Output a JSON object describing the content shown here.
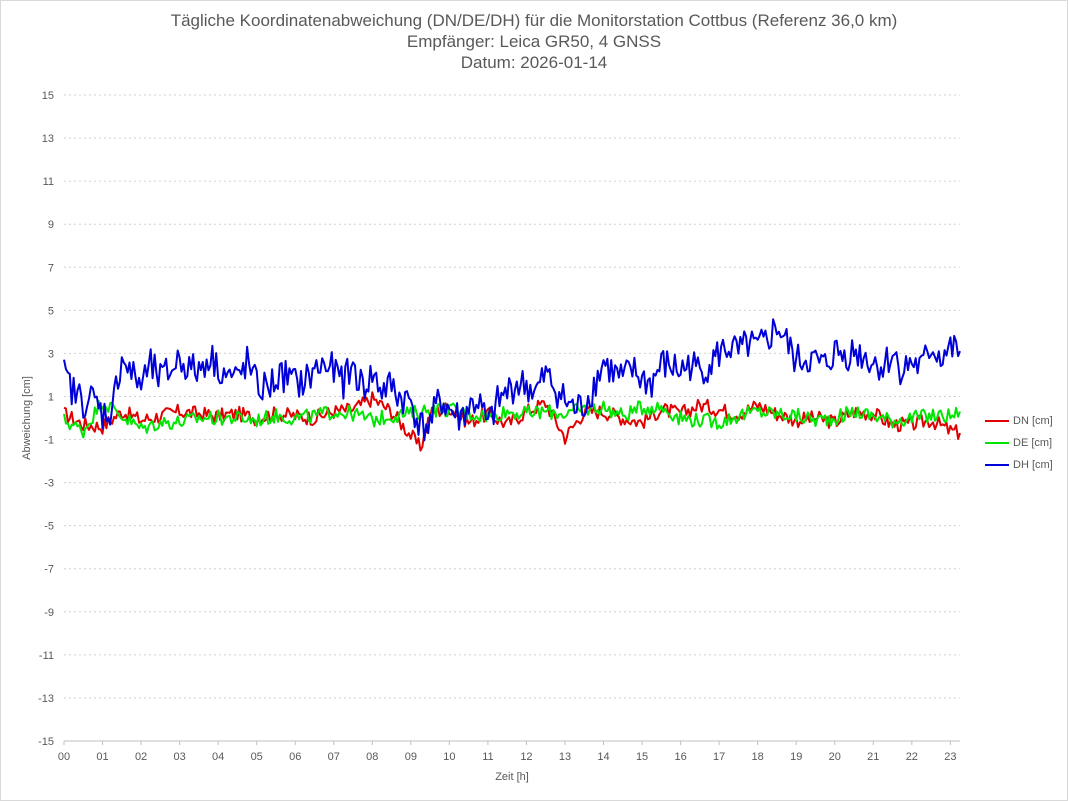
{
  "chart_data": {
    "type": "line",
    "title": "Tägliche Koordinatenabweichung (DN/DE/DH) für die Monitorstation Cottbus (Referenz 36,0 km)",
    "subtitle1": "Empfänger: Leica GR50, 4 GNSS",
    "subtitle2": "Datum: 2026-01-14",
    "xlabel": "Zeit [h]",
    "ylabel": "Abweichung [cm]",
    "xlim": [
      0,
      23.25
    ],
    "ylim": [
      -15,
      15
    ],
    "yticks": [
      15,
      13,
      11,
      9,
      7,
      5,
      3,
      1,
      -1,
      -3,
      -5,
      -7,
      -9,
      -11,
      -13,
      -15
    ],
    "xticks": [
      "00",
      "01",
      "02",
      "03",
      "04",
      "05",
      "06",
      "07",
      "08",
      "09",
      "10",
      "11",
      "12",
      "13",
      "14",
      "15",
      "16",
      "17",
      "18",
      "19",
      "20",
      "21",
      "22",
      "23"
    ],
    "legend_position": "right",
    "series": [
      {
        "name": "DN [cm]",
        "color": "#e00000",
        "x": [
          0,
          0.5,
          1,
          1.5,
          2,
          2.5,
          3,
          3.5,
          4,
          4.5,
          5,
          5.5,
          6,
          6.5,
          7,
          7.5,
          8,
          8.5,
          9,
          9.25,
          9.5,
          10,
          10.5,
          11,
          11.5,
          12,
          12.5,
          13,
          13.5,
          14,
          14.5,
          15,
          15.5,
          16,
          16.5,
          17,
          17.5,
          18,
          18.5,
          19,
          19.5,
          20,
          20.5,
          21,
          21.5,
          22,
          22.5,
          23,
          23.25
        ],
        "values": [
          0.2,
          -0.3,
          -0.4,
          0.3,
          -0.1,
          0.1,
          0.3,
          0.2,
          0.1,
          0.2,
          0.0,
          0.2,
          0.1,
          0.0,
          0.3,
          0.4,
          0.9,
          0.3,
          -0.8,
          -1.4,
          0.2,
          0.5,
          -0.2,
          0.2,
          -0.3,
          0.3,
          0.7,
          -0.9,
          0.3,
          0.3,
          0.0,
          -0.2,
          0.4,
          0.2,
          0.6,
          0.4,
          0.2,
          0.6,
          0.2,
          -0.1,
          0.0,
          -0.2,
          0.3,
          0.2,
          -0.3,
          -0.3,
          -0.1,
          -0.6,
          -0.7
        ]
      },
      {
        "name": "DE [cm]",
        "color": "#00e600",
        "x": [
          0,
          0.5,
          1,
          1.5,
          2,
          2.5,
          3,
          3.5,
          4,
          4.5,
          5,
          5.5,
          6,
          6.5,
          7,
          7.5,
          8,
          8.5,
          9,
          9.5,
          10,
          10.5,
          11,
          11.5,
          12,
          12.5,
          13,
          13.5,
          14,
          14.5,
          15,
          15.5,
          16,
          16.5,
          17,
          17.5,
          18,
          18.5,
          19,
          19.5,
          20,
          20.5,
          21,
          21.5,
          22,
          22.5,
          23,
          23.25
        ],
        "values": [
          -0.1,
          -0.6,
          0.8,
          0.1,
          -0.5,
          -0.2,
          -0.2,
          0.0,
          0.0,
          0.0,
          -0.1,
          0.1,
          0.0,
          0.1,
          0.3,
          0.2,
          -0.1,
          0.1,
          0.2,
          0.4,
          0.4,
          0.2,
          0.1,
          0.3,
          0.2,
          0.3,
          0.2,
          0.4,
          0.5,
          0.1,
          0.5,
          0.5,
          0.0,
          -0.1,
          -0.2,
          0.1,
          0.3,
          0.2,
          0.1,
          -0.1,
          0.0,
          0.3,
          0.1,
          -0.1,
          0.0,
          0.1,
          0.1,
          0.3
        ]
      },
      {
        "name": "DH [cm]",
        "color": "#0000d8",
        "x": [
          0,
          0.25,
          0.5,
          0.75,
          1,
          1.25,
          1.5,
          1.75,
          2,
          2.25,
          2.5,
          2.75,
          3,
          3.25,
          3.5,
          3.75,
          4,
          4.25,
          4.5,
          4.75,
          5,
          5.25,
          5.5,
          5.75,
          6,
          6.25,
          6.5,
          6.75,
          7,
          7.25,
          7.5,
          7.75,
          8,
          8.25,
          8.5,
          8.75,
          9,
          9.25,
          9.5,
          9.75,
          10,
          10.25,
          10.5,
          10.75,
          11,
          11.25,
          11.5,
          11.75,
          12,
          12.25,
          12.5,
          12.75,
          13,
          13.25,
          13.5,
          13.75,
          14,
          14.25,
          14.5,
          14.75,
          15,
          15.25,
          15.5,
          15.75,
          16,
          16.25,
          16.5,
          16.75,
          17,
          17.25,
          17.5,
          17.75,
          18,
          18.25,
          18.5,
          18.75,
          19,
          19.25,
          19.5,
          19.75,
          20,
          20.25,
          20.5,
          20.75,
          21,
          21.25,
          21.5,
          21.75,
          22,
          22.25,
          22.5,
          22.75,
          23,
          23.25
        ],
        "values": [
          2.0,
          1.2,
          0.8,
          0.9,
          0.2,
          0.4,
          2.9,
          2.0,
          1.6,
          2.4,
          1.8,
          2.2,
          2.8,
          2.3,
          2.2,
          2.9,
          2.4,
          2.0,
          1.8,
          2.6,
          1.5,
          1.4,
          1.8,
          2.0,
          1.6,
          1.7,
          2.2,
          2.5,
          2.2,
          1.7,
          2.4,
          1.4,
          2.0,
          1.3,
          1.5,
          0.9,
          0.8,
          -0.4,
          -0.3,
          0.9,
          0.4,
          0.0,
          0.5,
          0.8,
          -0.4,
          0.7,
          1.2,
          1.6,
          1.5,
          1.2,
          2.0,
          1.4,
          0.8,
          0.4,
          0.6,
          1.5,
          2.6,
          2.1,
          1.8,
          2.2,
          1.8,
          1.6,
          2.5,
          2.4,
          2.2,
          2.5,
          2.2,
          2.5,
          3.0,
          3.3,
          3.0,
          3.4,
          3.2,
          3.6,
          4.3,
          3.5,
          2.6,
          2.8,
          2.6,
          2.4,
          3.1,
          2.9,
          3.1,
          2.9,
          2.6,
          2.4,
          3.0,
          2.2,
          2.6,
          2.3,
          3.3,
          2.9,
          3.2,
          3.1
        ]
      }
    ]
  }
}
